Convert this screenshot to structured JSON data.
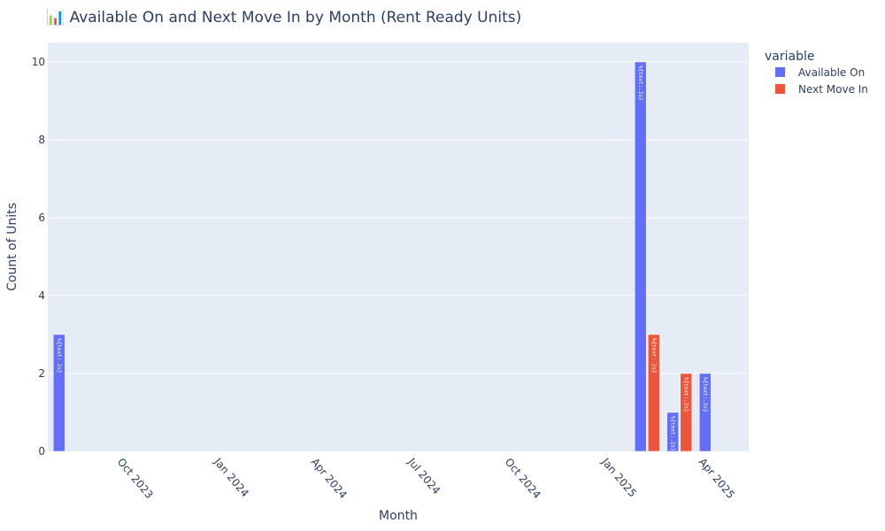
{
  "chart_data": {
    "type": "bar",
    "title": "📊 Available On and Next Move In by Month (Rent Ready Units)",
    "xlabel": "Month",
    "ylabel": "Count of Units",
    "ylim": [
      0,
      10.5
    ],
    "yticks": [
      0,
      2,
      4,
      6,
      8,
      10
    ],
    "xticks": [
      "Oct 2023",
      "Jan 2024",
      "Apr 2024",
      "Jul 2024",
      "Oct 2024",
      "Jan 2025",
      "Apr 2025"
    ],
    "grid": true,
    "legend_title": "variable",
    "legend_position": "top-right",
    "bar_text": "%{text:.2s}",
    "series": [
      {
        "name": "Available On",
        "color": "#636efa",
        "points": [
          {
            "month": "Aug 2023",
            "value": 3
          },
          {
            "month": "Feb 2025",
            "value": 10
          },
          {
            "month": "Mar 2025",
            "value": 1
          },
          {
            "month": "Apr 2025",
            "value": 2
          }
        ]
      },
      {
        "name": "Next Move In",
        "color": "#ef553b",
        "points": [
          {
            "month": "Feb 2025",
            "value": 3
          },
          {
            "month": "Mar 2025",
            "value": 2
          }
        ]
      }
    ]
  },
  "colors": {
    "plot_background": "#e5ecf6",
    "grid": "#ffffff",
    "text": "#2a3f5f"
  }
}
